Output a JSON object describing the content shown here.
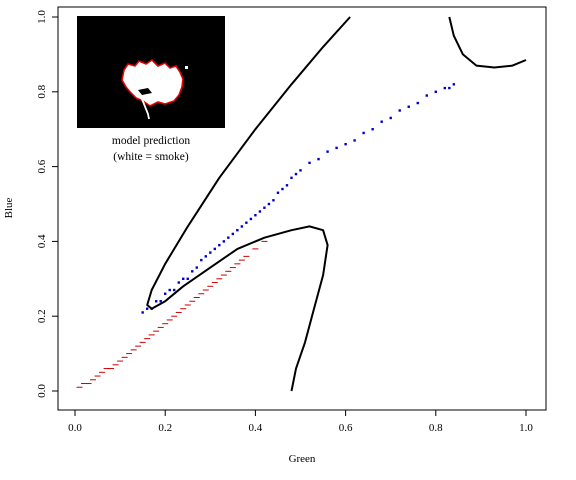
{
  "chart_data": {
    "type": "scatter",
    "title": "",
    "xlabel": "Green",
    "ylabel": "Blue",
    "xlim": [
      0.0,
      1.0
    ],
    "ylim": [
      0.0,
      1.0
    ],
    "x_ticks": [
      "0.0",
      "0.2",
      "0.4",
      "0.6",
      "0.8",
      "1.0"
    ],
    "y_ticks": [
      "0.0",
      "0.2",
      "0.4",
      "0.6",
      "0.8",
      "1.0"
    ],
    "grid": false,
    "legend": "none",
    "series": [
      {
        "color": "#0000cc",
        "marker": "square",
        "points": [
          [
            0.15,
            0.21
          ],
          [
            0.16,
            0.22
          ],
          [
            0.17,
            0.22
          ],
          [
            0.18,
            0.24
          ],
          [
            0.19,
            0.24
          ],
          [
            0.2,
            0.26
          ],
          [
            0.21,
            0.27
          ],
          [
            0.22,
            0.27
          ],
          [
            0.23,
            0.29
          ],
          [
            0.24,
            0.3
          ],
          [
            0.25,
            0.3
          ],
          [
            0.26,
            0.32
          ],
          [
            0.27,
            0.33
          ],
          [
            0.28,
            0.35
          ],
          [
            0.29,
            0.36
          ],
          [
            0.3,
            0.37
          ],
          [
            0.31,
            0.38
          ],
          [
            0.32,
            0.39
          ],
          [
            0.33,
            0.4
          ],
          [
            0.34,
            0.41
          ],
          [
            0.35,
            0.42
          ],
          [
            0.36,
            0.43
          ],
          [
            0.37,
            0.44
          ],
          [
            0.38,
            0.45
          ],
          [
            0.39,
            0.46
          ],
          [
            0.4,
            0.47
          ],
          [
            0.41,
            0.48
          ],
          [
            0.42,
            0.49
          ],
          [
            0.43,
            0.5
          ],
          [
            0.44,
            0.51
          ],
          [
            0.45,
            0.53
          ],
          [
            0.46,
            0.54
          ],
          [
            0.47,
            0.55
          ],
          [
            0.48,
            0.57
          ],
          [
            0.49,
            0.58
          ],
          [
            0.5,
            0.59
          ],
          [
            0.52,
            0.61
          ],
          [
            0.54,
            0.62
          ],
          [
            0.56,
            0.64
          ],
          [
            0.58,
            0.65
          ],
          [
            0.6,
            0.66
          ],
          [
            0.62,
            0.67
          ],
          [
            0.64,
            0.69
          ],
          [
            0.66,
            0.7
          ],
          [
            0.68,
            0.72
          ],
          [
            0.7,
            0.73
          ],
          [
            0.72,
            0.75
          ],
          [
            0.74,
            0.76
          ],
          [
            0.76,
            0.77
          ],
          [
            0.78,
            0.79
          ],
          [
            0.8,
            0.8
          ],
          [
            0.82,
            0.81
          ],
          [
            0.83,
            0.81
          ],
          [
            0.84,
            0.82
          ]
        ]
      },
      {
        "color": "#cc0000",
        "marker": "dash",
        "points": [
          [
            0.01,
            0.01
          ],
          [
            0.02,
            0.02
          ],
          [
            0.03,
            0.02
          ],
          [
            0.04,
            0.03
          ],
          [
            0.05,
            0.04
          ],
          [
            0.06,
            0.05
          ],
          [
            0.07,
            0.06
          ],
          [
            0.08,
            0.06
          ],
          [
            0.09,
            0.07
          ],
          [
            0.1,
            0.08
          ],
          [
            0.11,
            0.09
          ],
          [
            0.12,
            0.1
          ],
          [
            0.13,
            0.11
          ],
          [
            0.14,
            0.12
          ],
          [
            0.15,
            0.13
          ],
          [
            0.16,
            0.14
          ],
          [
            0.17,
            0.15
          ],
          [
            0.18,
            0.16
          ],
          [
            0.19,
            0.17
          ],
          [
            0.2,
            0.18
          ],
          [
            0.21,
            0.19
          ],
          [
            0.22,
            0.2
          ],
          [
            0.23,
            0.21
          ],
          [
            0.24,
            0.22
          ],
          [
            0.25,
            0.23
          ],
          [
            0.26,
            0.24
          ],
          [
            0.27,
            0.25
          ],
          [
            0.28,
            0.26
          ],
          [
            0.29,
            0.27
          ],
          [
            0.3,
            0.28
          ],
          [
            0.31,
            0.29
          ],
          [
            0.32,
            0.3
          ],
          [
            0.33,
            0.31
          ],
          [
            0.34,
            0.32
          ],
          [
            0.35,
            0.33
          ],
          [
            0.36,
            0.34
          ],
          [
            0.37,
            0.35
          ],
          [
            0.38,
            0.36
          ],
          [
            0.4,
            0.38
          ],
          [
            0.42,
            0.4
          ]
        ]
      }
    ],
    "decision_boundary": [
      {
        "points": [
          [
            0.61,
            1.0
          ],
          [
            0.55,
            0.92
          ],
          [
            0.48,
            0.82
          ],
          [
            0.4,
            0.7
          ],
          [
            0.32,
            0.57
          ],
          [
            0.25,
            0.44
          ],
          [
            0.2,
            0.34
          ],
          [
            0.17,
            0.27
          ],
          [
            0.16,
            0.23
          ],
          [
            0.17,
            0.22
          ],
          [
            0.2,
            0.24
          ],
          [
            0.24,
            0.28
          ],
          [
            0.3,
            0.33
          ],
          [
            0.36,
            0.38
          ],
          [
            0.42,
            0.41
          ],
          [
            0.48,
            0.43
          ],
          [
            0.52,
            0.44
          ],
          [
            0.55,
            0.43
          ],
          [
            0.56,
            0.39
          ],
          [
            0.55,
            0.31
          ],
          [
            0.53,
            0.22
          ],
          [
            0.51,
            0.13
          ],
          [
            0.49,
            0.06
          ],
          [
            0.48,
            0.0
          ]
        ]
      },
      {
        "points": [
          [
            0.83,
            1.0
          ],
          [
            0.84,
            0.95
          ],
          [
            0.86,
            0.9
          ],
          [
            0.89,
            0.87
          ],
          [
            0.93,
            0.865
          ],
          [
            0.97,
            0.87
          ],
          [
            1.0,
            0.885
          ]
        ]
      }
    ],
    "inset": {
      "caption_line1": "model prediction",
      "caption_line2": "(white = smoke)"
    }
  }
}
